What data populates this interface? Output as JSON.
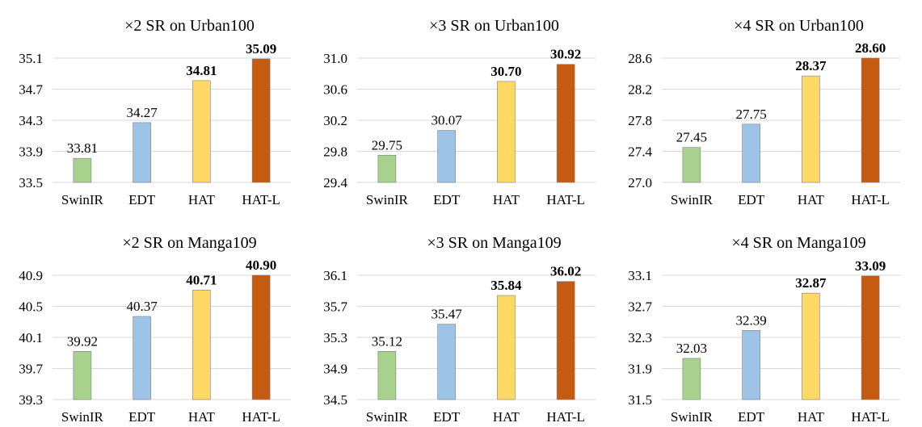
{
  "colors": {
    "bar_colors": [
      "#a9d18e",
      "#9dc3e6",
      "#ffd966",
      "#c55a11"
    ],
    "bar_stroke": "#7f7f7f",
    "grid": "#d9d9d9",
    "text": "#000000"
  },
  "chart_data": [
    {
      "type": "bar",
      "title": "×2 SR on Urban100",
      "categories": [
        "SwinIR",
        "EDT",
        "HAT",
        "HAT-L"
      ],
      "values": [
        33.81,
        34.27,
        34.81,
        35.09
      ],
      "value_labels": [
        "33.81",
        "34.27",
        "34.81",
        "35.09"
      ],
      "bold_labels": [
        false,
        false,
        true,
        true
      ],
      "yticks": [
        "33.5",
        "33.9",
        "34.3",
        "34.7",
        "35.1"
      ],
      "ylim": [
        33.5,
        35.1
      ],
      "grid": true
    },
    {
      "type": "bar",
      "title": "×3 SR on Urban100",
      "categories": [
        "SwinIR",
        "EDT",
        "HAT",
        "HAT-L"
      ],
      "values": [
        29.75,
        30.07,
        30.7,
        30.92
      ],
      "value_labels": [
        "29.75",
        "30.07",
        "30.70",
        "30.92"
      ],
      "bold_labels": [
        false,
        false,
        true,
        true
      ],
      "yticks": [
        "29.4",
        "29.8",
        "30.2",
        "30.6",
        "31.0"
      ],
      "ylim": [
        29.4,
        31.0
      ],
      "grid": true
    },
    {
      "type": "bar",
      "title": "×4 SR on Urban100",
      "categories": [
        "SwinIR",
        "EDT",
        "HAT",
        "HAT-L"
      ],
      "values": [
        27.45,
        27.75,
        28.37,
        28.6
      ],
      "value_labels": [
        "27.45",
        "27.75",
        "28.37",
        "28.60"
      ],
      "bold_labels": [
        false,
        false,
        true,
        true
      ],
      "yticks": [
        "27.0",
        "27.4",
        "27.8",
        "28.2",
        "28.6"
      ],
      "ylim": [
        27.0,
        28.6
      ],
      "grid": true
    },
    {
      "type": "bar",
      "title": "×2 SR on Manga109",
      "categories": [
        "SwinIR",
        "EDT",
        "HAT",
        "HAT-L"
      ],
      "values": [
        39.92,
        40.37,
        40.71,
        40.9
      ],
      "value_labels": [
        "39.92",
        "40.37",
        "40.71",
        "40.90"
      ],
      "bold_labels": [
        false,
        false,
        true,
        true
      ],
      "yticks": [
        "39.3",
        "39.7",
        "40.1",
        "40.5",
        "40.9"
      ],
      "ylim": [
        39.3,
        40.9
      ],
      "grid": true
    },
    {
      "type": "bar",
      "title": "×3 SR on Manga109",
      "categories": [
        "SwinIR",
        "EDT",
        "HAT",
        "HAT-L"
      ],
      "values": [
        35.12,
        35.47,
        35.84,
        36.02
      ],
      "value_labels": [
        "35.12",
        "35.47",
        "35.84",
        "36.02"
      ],
      "bold_labels": [
        false,
        false,
        true,
        true
      ],
      "yticks": [
        "34.5",
        "34.9",
        "35.3",
        "35.7",
        "36.1"
      ],
      "ylim": [
        34.5,
        36.1
      ],
      "grid": true
    },
    {
      "type": "bar",
      "title": "×4 SR on Manga109",
      "categories": [
        "SwinIR",
        "EDT",
        "HAT",
        "HAT-L"
      ],
      "values": [
        32.03,
        32.39,
        32.87,
        33.09
      ],
      "value_labels": [
        "32.03",
        "32.39",
        "32.87",
        "33.09"
      ],
      "bold_labels": [
        false,
        false,
        true,
        true
      ],
      "yticks": [
        "31.5",
        "31.9",
        "32.3",
        "32.7",
        "33.1"
      ],
      "ylim": [
        31.5,
        33.1
      ],
      "grid": true
    }
  ]
}
